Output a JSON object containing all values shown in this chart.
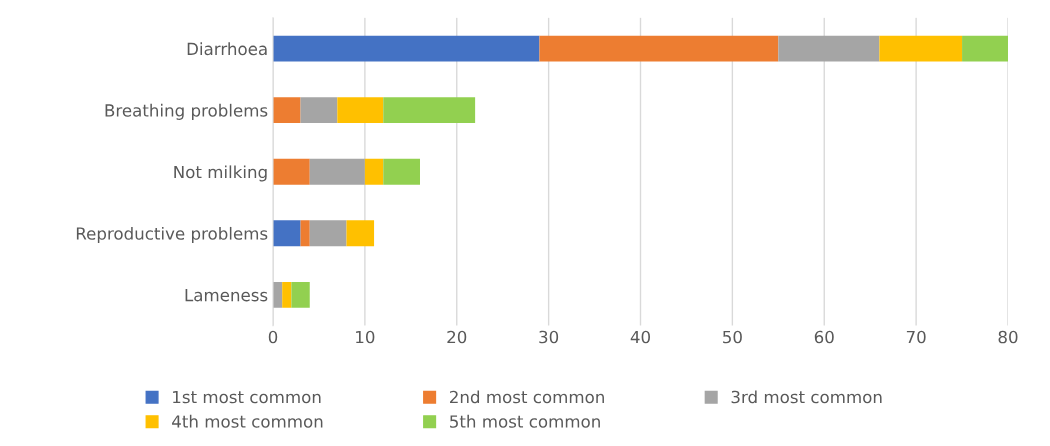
{
  "chart_data": {
    "type": "bar",
    "orientation": "horizontal",
    "stacked": true,
    "categories": [
      "Diarrhoea",
      "Breathing problems",
      "Not milking",
      "Reproductive problems",
      "Lameness"
    ],
    "series": [
      {
        "name": "1st most common",
        "color": "#4472c4",
        "values": [
          29,
          0,
          0,
          3,
          0
        ]
      },
      {
        "name": "2nd most common",
        "color": "#ed7d31",
        "values": [
          26,
          3,
          4,
          1,
          0
        ]
      },
      {
        "name": "3rd most common",
        "color": "#a5a5a5",
        "values": [
          11,
          4,
          6,
          4,
          1
        ]
      },
      {
        "name": "4th most common",
        "color": "#ffc000",
        "values": [
          9,
          5,
          2,
          3,
          1
        ]
      },
      {
        "name": "5th most common",
        "color": "#92d050",
        "values": [
          5,
          10,
          4,
          0,
          2
        ]
      }
    ],
    "xlim": [
      0,
      80
    ],
    "xticks": [
      0,
      10,
      20,
      30,
      40,
      50,
      60,
      70,
      80
    ],
    "grid": "x",
    "legend": "bottom"
  }
}
